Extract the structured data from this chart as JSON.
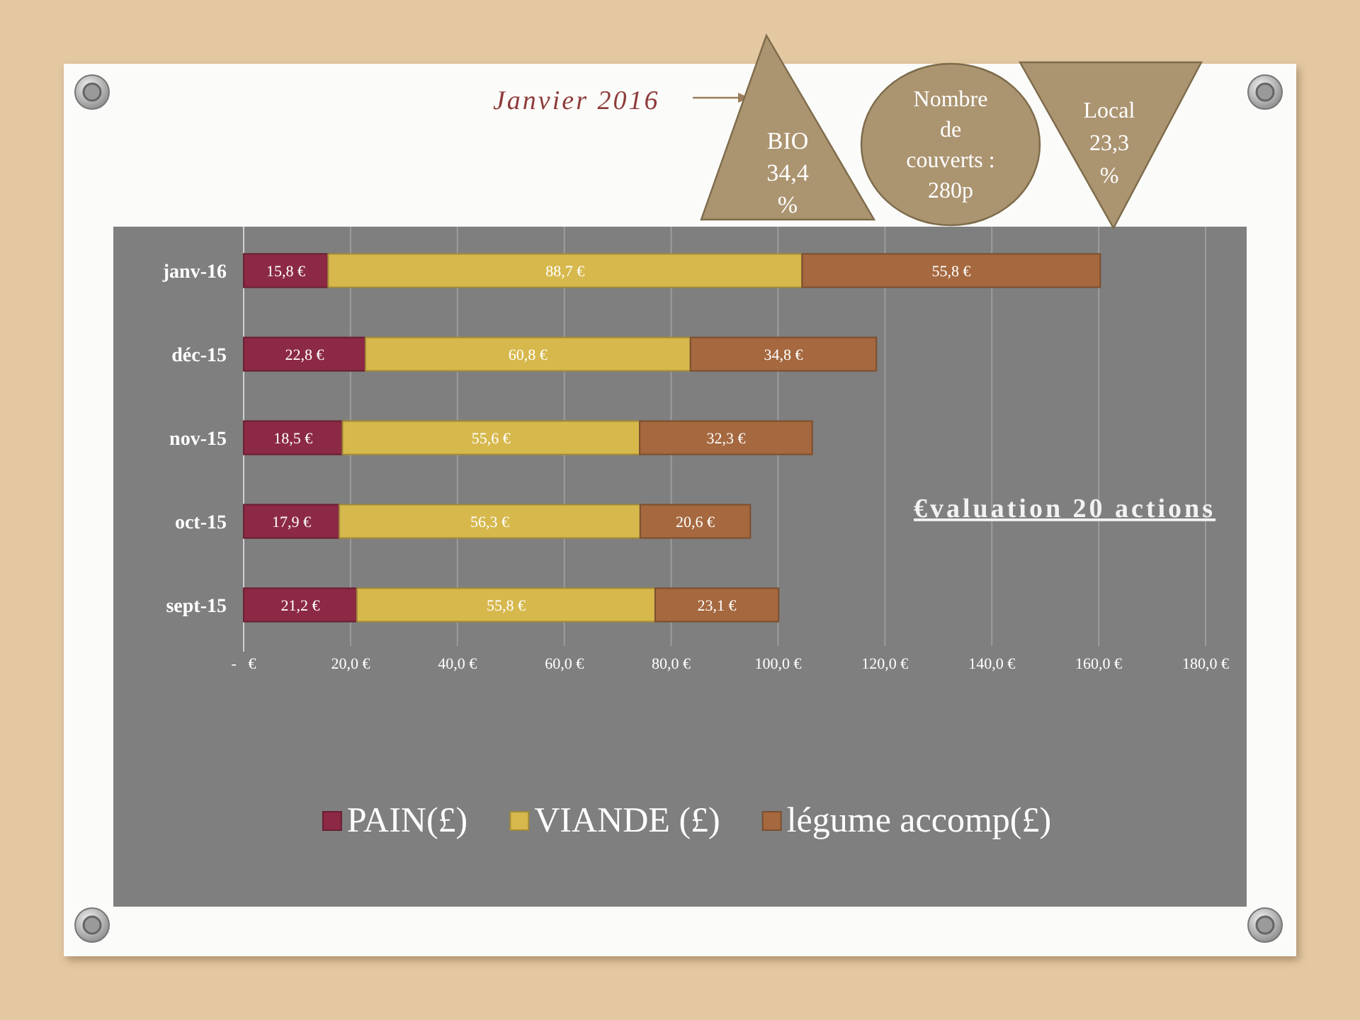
{
  "chart_data": {
    "type": "bar",
    "orientation": "horizontal",
    "stacked": true,
    "categories": [
      "janv-16",
      "déc-15",
      "nov-15",
      "oct-15",
      "sept-15"
    ],
    "series": [
      {
        "name": "PAIN(£)",
        "color": "#8c2944",
        "values": [
          15.8,
          22.8,
          18.5,
          17.9,
          21.2
        ],
        "value_labels": [
          "15,8 €",
          "22,8 €",
          "18,5 €",
          "17,9 €",
          "21,2 €"
        ]
      },
      {
        "name": "VIANDE (£)",
        "color": "#d6b84c",
        "values": [
          88.7,
          60.8,
          55.6,
          56.3,
          55.8
        ],
        "value_labels": [
          "88,7 €",
          "60,8 €",
          "55,6 €",
          "56,3 €",
          "55,8 €"
        ]
      },
      {
        "name": "légume accomp(£)",
        "color": "#a5683f",
        "values": [
          55.8,
          34.8,
          32.3,
          20.6,
          23.1
        ],
        "value_labels": [
          "55,8 €",
          "34,8 €",
          "32,3 €",
          "20,6 €",
          "23,1 €"
        ]
      }
    ],
    "xlim": [
      0,
      180
    ],
    "xticks": [
      {
        "value": 0,
        "label": "-   €"
      },
      {
        "value": 20,
        "label": "20,0 €"
      },
      {
        "value": 40,
        "label": "40,0 €"
      },
      {
        "value": 60,
        "label": "60,0 €"
      },
      {
        "value": 80,
        "label": "80,0 €"
      },
      {
        "value": 100,
        "label": "100,0 €"
      },
      {
        "value": 120,
        "label": "120,0 €"
      },
      {
        "value": 140,
        "label": "140,0 €"
      },
      {
        "value": 160,
        "label": "160,0 €"
      },
      {
        "value": 180,
        "label": "180,0 €"
      }
    ],
    "grid": "x",
    "legend": "bottom",
    "annotations": [
      "Janvier 2016",
      "BIO 34,4 %",
      "Nombre de couverts : 280p",
      "Local 23,3 %",
      "€valuation 20 actions"
    ]
  }
}
